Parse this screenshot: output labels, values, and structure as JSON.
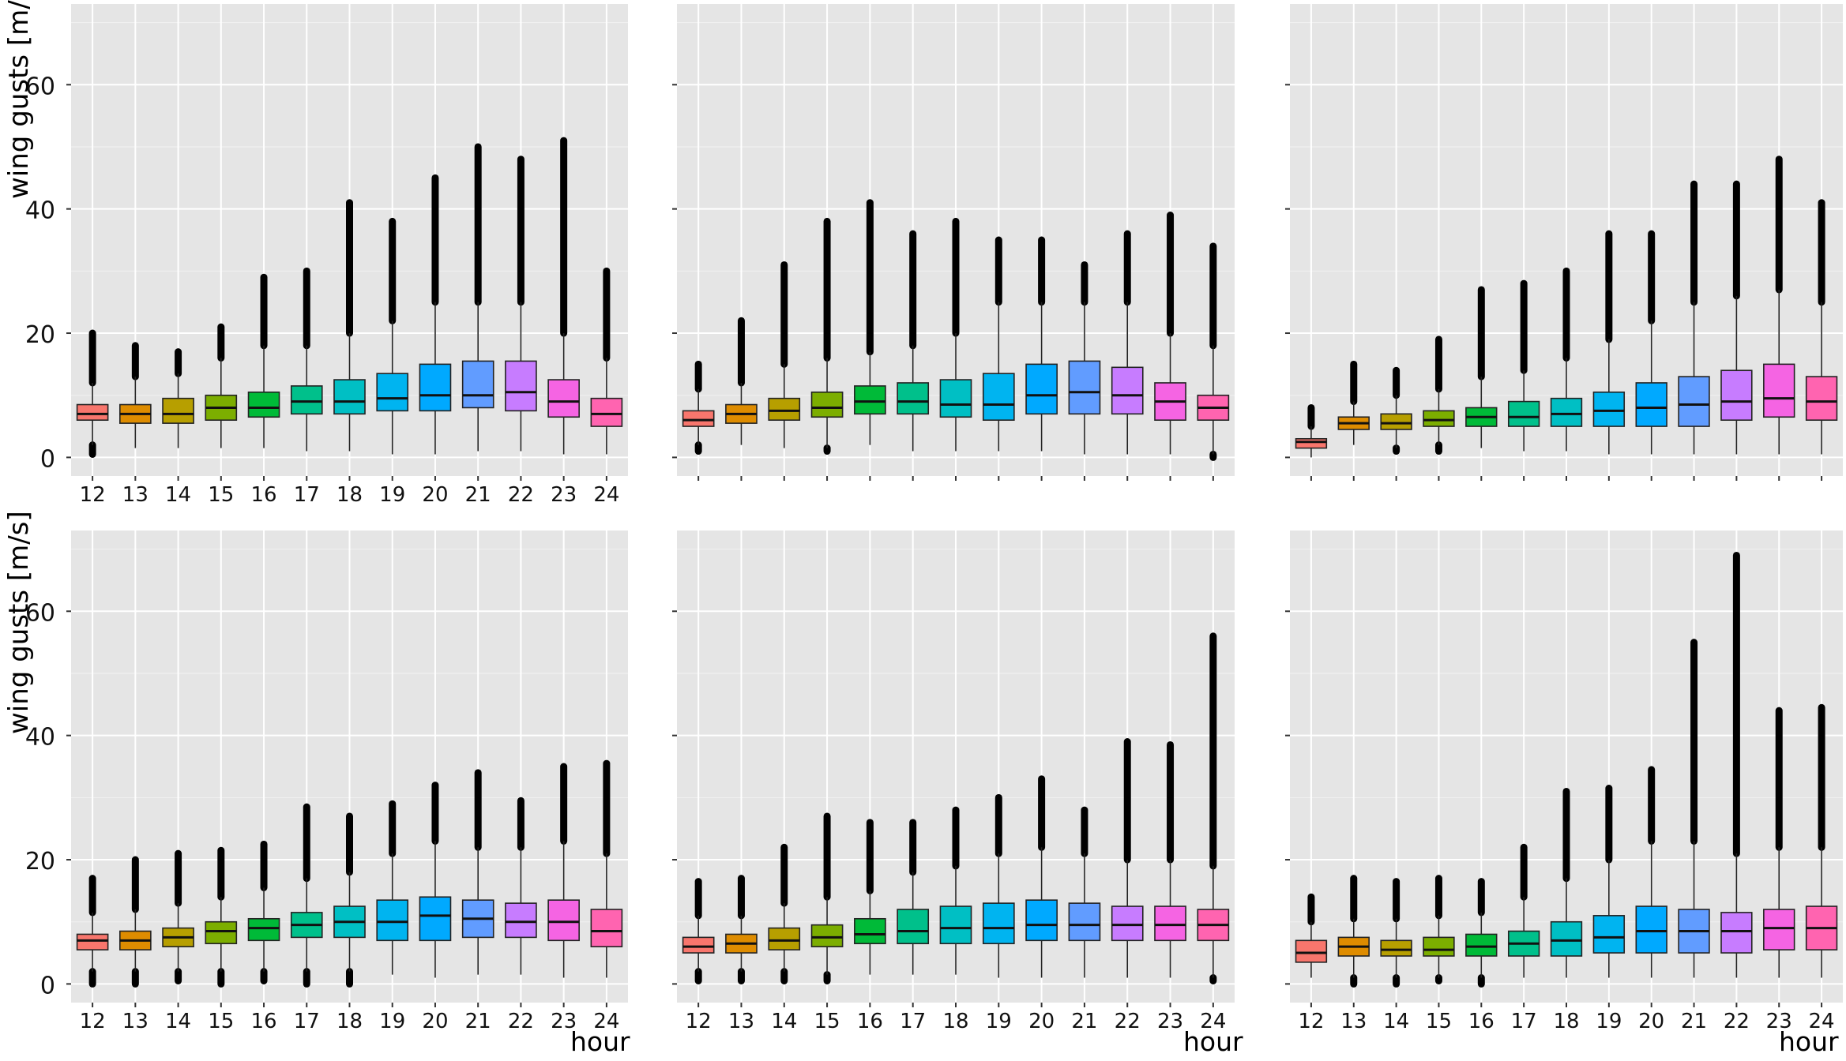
{
  "figure": {
    "y_label": "wing gusts [m/s]",
    "x_label": "hour"
  },
  "colors": [
    "#F8766D",
    "#DE8C00",
    "#B79F00",
    "#7CAE00",
    "#00BA38",
    "#00C08B",
    "#00BFC4",
    "#00B4F0",
    "#00A9FF",
    "#619CFF",
    "#C77CFF",
    "#F564E3",
    "#FF64B0"
  ],
  "chart_data": [
    {
      "type": "boxplot",
      "panel": "top-left",
      "categories": [
        "12",
        "13",
        "14",
        "15",
        "16",
        "17",
        "18",
        "19",
        "20",
        "21",
        "22",
        "23",
        "24"
      ],
      "ylim": [
        -3,
        73
      ],
      "yticks": [
        0,
        20,
        40,
        60
      ],
      "show_ytick_labels": true,
      "show_xtick_labels": true,
      "ylabel": "wing gusts [m/s]",
      "xlabel": "",
      "boxes": [
        {
          "q1": 6,
          "median": 7,
          "q3": 8.5,
          "whisker_low": 2,
          "whisker_high": 12,
          "outlier_high": 20,
          "outlier_low": 0.5
        },
        {
          "q1": 5.5,
          "median": 7,
          "q3": 8.5,
          "whisker_low": 1.5,
          "whisker_high": 13,
          "outlier_high": 18
        },
        {
          "q1": 5.5,
          "median": 7,
          "q3": 9.5,
          "whisker_low": 1.5,
          "whisker_high": 13.5,
          "outlier_high": 17
        },
        {
          "q1": 6,
          "median": 8,
          "q3": 10,
          "whisker_low": 1.5,
          "whisker_high": 16,
          "outlier_high": 21
        },
        {
          "q1": 6.5,
          "median": 8,
          "q3": 10.5,
          "whisker_low": 1.5,
          "whisker_high": 18,
          "outlier_high": 29
        },
        {
          "q1": 7,
          "median": 9,
          "q3": 11.5,
          "whisker_low": 1,
          "whisker_high": 18,
          "outlier_high": 30
        },
        {
          "q1": 7,
          "median": 9,
          "q3": 12.5,
          "whisker_low": 1,
          "whisker_high": 20,
          "outlier_high": 41
        },
        {
          "q1": 7.5,
          "median": 9.5,
          "q3": 13.5,
          "whisker_low": 0.5,
          "whisker_high": 22,
          "outlier_high": 38
        },
        {
          "q1": 7.5,
          "median": 10,
          "q3": 15,
          "whisker_low": 0.5,
          "whisker_high": 25,
          "outlier_high": 45
        },
        {
          "q1": 8,
          "median": 10,
          "q3": 15.5,
          "whisker_low": 1,
          "whisker_high": 25,
          "outlier_high": 50
        },
        {
          "q1": 7.5,
          "median": 10.5,
          "q3": 15.5,
          "whisker_low": 1,
          "whisker_high": 25,
          "outlier_high": 48
        },
        {
          "q1": 6.5,
          "median": 9,
          "q3": 12.5,
          "whisker_low": 0.5,
          "whisker_high": 20,
          "outlier_high": 51
        },
        {
          "q1": 5,
          "median": 7,
          "q3": 9.5,
          "whisker_low": 0.5,
          "whisker_high": 16,
          "outlier_high": 30
        }
      ]
    },
    {
      "type": "boxplot",
      "panel": "top-middle",
      "categories": [
        "12",
        "13",
        "14",
        "15",
        "16",
        "17",
        "18",
        "19",
        "20",
        "21",
        "22",
        "23",
        "24"
      ],
      "ylim": [
        -3,
        73
      ],
      "yticks": [
        0,
        20,
        40,
        60
      ],
      "show_ytick_labels": false,
      "show_xtick_labels": false,
      "boxes": [
        {
          "q1": 5,
          "median": 6,
          "q3": 7.5,
          "whisker_low": 2,
          "whisker_high": 11,
          "outlier_high": 15,
          "outlier_low": 1
        },
        {
          "q1": 5.5,
          "median": 7,
          "q3": 8.5,
          "whisker_low": 2,
          "whisker_high": 12,
          "outlier_high": 22
        },
        {
          "q1": 6,
          "median": 7.5,
          "q3": 9.5,
          "whisker_low": 1.5,
          "whisker_high": 15,
          "outlier_high": 31
        },
        {
          "q1": 6.5,
          "median": 8,
          "q3": 10.5,
          "whisker_low": 1.5,
          "whisker_high": 16,
          "outlier_high": 38,
          "outlier_low": 1
        },
        {
          "q1": 7,
          "median": 9,
          "q3": 11.5,
          "whisker_low": 2,
          "whisker_high": 17,
          "outlier_high": 41
        },
        {
          "q1": 7,
          "median": 9,
          "q3": 12,
          "whisker_low": 1,
          "whisker_high": 18,
          "outlier_high": 36
        },
        {
          "q1": 6.5,
          "median": 8.5,
          "q3": 12.5,
          "whisker_low": 1,
          "whisker_high": 20,
          "outlier_high": 38
        },
        {
          "q1": 6,
          "median": 8.5,
          "q3": 13.5,
          "whisker_low": 1,
          "whisker_high": 25,
          "outlier_high": 35
        },
        {
          "q1": 7,
          "median": 10,
          "q3": 15,
          "whisker_low": 1,
          "whisker_high": 25,
          "outlier_high": 35
        },
        {
          "q1": 7,
          "median": 10.5,
          "q3": 15.5,
          "whisker_low": 0.5,
          "whisker_high": 25,
          "outlier_high": 31
        },
        {
          "q1": 7,
          "median": 10,
          "q3": 14.5,
          "whisker_low": 0.5,
          "whisker_high": 25,
          "outlier_high": 36
        },
        {
          "q1": 6,
          "median": 9,
          "q3": 12,
          "whisker_low": 0.5,
          "whisker_high": 20,
          "outlier_high": 39
        },
        {
          "q1": 6,
          "median": 8,
          "q3": 10,
          "whisker_low": 0.5,
          "whisker_high": 18,
          "outlier_high": 34,
          "outlier_low": 0
        }
      ]
    },
    {
      "type": "boxplot",
      "panel": "top-right",
      "categories": [
        "12",
        "13",
        "14",
        "15",
        "16",
        "17",
        "18",
        "19",
        "20",
        "21",
        "22",
        "23",
        "24"
      ],
      "ylim": [
        -3,
        73
      ],
      "yticks": [
        0,
        20,
        40,
        60
      ],
      "show_ytick_labels": false,
      "show_xtick_labels": false,
      "boxes": [
        {
          "q1": 1.5,
          "median": 2.5,
          "q3": 3,
          "whisker_low": 0,
          "whisker_high": 5,
          "outlier_high": 8
        },
        {
          "q1": 4.5,
          "median": 5.5,
          "q3": 6.5,
          "whisker_low": 2,
          "whisker_high": 9,
          "outlier_high": 15
        },
        {
          "q1": 4.5,
          "median": 5.5,
          "q3": 7,
          "whisker_low": 1.5,
          "whisker_high": 10,
          "outlier_high": 14,
          "outlier_low": 1
        },
        {
          "q1": 5,
          "median": 6,
          "q3": 7.5,
          "whisker_low": 2,
          "whisker_high": 11,
          "outlier_high": 19,
          "outlier_low": 1
        },
        {
          "q1": 5,
          "median": 6.5,
          "q3": 8,
          "whisker_low": 1.5,
          "whisker_high": 13,
          "outlier_high": 27
        },
        {
          "q1": 5,
          "median": 6.5,
          "q3": 9,
          "whisker_low": 1,
          "whisker_high": 14,
          "outlier_high": 28
        },
        {
          "q1": 5,
          "median": 7,
          "q3": 9.5,
          "whisker_low": 1,
          "whisker_high": 16,
          "outlier_high": 30
        },
        {
          "q1": 5,
          "median": 7.5,
          "q3": 10.5,
          "whisker_low": 0.5,
          "whisker_high": 19,
          "outlier_high": 36
        },
        {
          "q1": 5,
          "median": 8,
          "q3": 12,
          "whisker_low": 0.5,
          "whisker_high": 22,
          "outlier_high": 36
        },
        {
          "q1": 5,
          "median": 8.5,
          "q3": 13,
          "whisker_low": 0.5,
          "whisker_high": 25,
          "outlier_high": 44
        },
        {
          "q1": 6,
          "median": 9,
          "q3": 14,
          "whisker_low": 0.5,
          "whisker_high": 26,
          "outlier_high": 44
        },
        {
          "q1": 6.5,
          "median": 9.5,
          "q3": 15,
          "whisker_low": 0.5,
          "whisker_high": 27,
          "outlier_high": 48
        },
        {
          "q1": 6,
          "median": 9,
          "q3": 13,
          "whisker_low": 0.5,
          "whisker_high": 25,
          "outlier_high": 41
        }
      ]
    },
    {
      "type": "boxplot",
      "panel": "bottom-left",
      "categories": [
        "12",
        "13",
        "14",
        "15",
        "16",
        "17",
        "18",
        "19",
        "20",
        "21",
        "22",
        "23",
        "24"
      ],
      "ylim": [
        -3,
        73
      ],
      "yticks": [
        0,
        20,
        40,
        60
      ],
      "show_ytick_labels": true,
      "show_xtick_labels": true,
      "ylabel": "wing gusts [m/s]",
      "xlabel": "hour",
      "boxes": [
        {
          "q1": 5.5,
          "median": 7,
          "q3": 8,
          "whisker_low": 2,
          "whisker_high": 11.5,
          "outlier_high": 17,
          "outlier_low": 0
        },
        {
          "q1": 5.5,
          "median": 7,
          "q3": 8.5,
          "whisker_low": 2,
          "whisker_high": 12,
          "outlier_high": 20,
          "outlier_low": 0
        },
        {
          "q1": 6,
          "median": 7.5,
          "q3": 9,
          "whisker_low": 2,
          "whisker_high": 13,
          "outlier_high": 21,
          "outlier_low": 0.5
        },
        {
          "q1": 6.5,
          "median": 8.5,
          "q3": 10,
          "whisker_low": 2,
          "whisker_high": 14,
          "outlier_high": 21.5,
          "outlier_low": 0
        },
        {
          "q1": 7,
          "median": 9,
          "q3": 10.5,
          "whisker_low": 2,
          "whisker_high": 15.5,
          "outlier_high": 22.5,
          "outlier_low": 0.5
        },
        {
          "q1": 7.5,
          "median": 9.5,
          "q3": 11.5,
          "whisker_low": 2,
          "whisker_high": 17,
          "outlier_high": 28.5,
          "outlier_low": 0
        },
        {
          "q1": 7.5,
          "median": 10,
          "q3": 12.5,
          "whisker_low": 2,
          "whisker_high": 18,
          "outlier_high": 27,
          "outlier_low": 0
        },
        {
          "q1": 7,
          "median": 10,
          "q3": 13.5,
          "whisker_low": 1.5,
          "whisker_high": 21,
          "outlier_high": 29
        },
        {
          "q1": 7,
          "median": 11,
          "q3": 14,
          "whisker_low": 1,
          "whisker_high": 23,
          "outlier_high": 32
        },
        {
          "q1": 7.5,
          "median": 10.5,
          "q3": 13.5,
          "whisker_low": 1.5,
          "whisker_high": 22,
          "outlier_high": 34
        },
        {
          "q1": 7.5,
          "median": 10,
          "q3": 13,
          "whisker_low": 1.5,
          "whisker_high": 22,
          "outlier_high": 29.5
        },
        {
          "q1": 7,
          "median": 10,
          "q3": 13.5,
          "whisker_low": 1,
          "whisker_high": 23,
          "outlier_high": 35
        },
        {
          "q1": 6,
          "median": 8.5,
          "q3": 12,
          "whisker_low": 1,
          "whisker_high": 21,
          "outlier_high": 35.5
        }
      ]
    },
    {
      "type": "boxplot",
      "panel": "bottom-middle",
      "categories": [
        "12",
        "13",
        "14",
        "15",
        "16",
        "17",
        "18",
        "19",
        "20",
        "21",
        "22",
        "23",
        "24"
      ],
      "ylim": [
        -3,
        73
      ],
      "yticks": [
        0,
        20,
        40,
        60
      ],
      "show_ytick_labels": false,
      "show_xtick_labels": true,
      "xlabel": "hour",
      "boxes": [
        {
          "q1": 5,
          "median": 6,
          "q3": 7.5,
          "whisker_low": 2,
          "whisker_high": 11,
          "outlier_high": 16.5,
          "outlier_low": 0.5
        },
        {
          "q1": 5,
          "median": 6.5,
          "q3": 8,
          "whisker_low": 2,
          "whisker_high": 11,
          "outlier_high": 17,
          "outlier_low": 0.5
        },
        {
          "q1": 5.5,
          "median": 7,
          "q3": 9,
          "whisker_low": 2,
          "whisker_high": 13,
          "outlier_high": 22,
          "outlier_low": 0.5
        },
        {
          "q1": 6,
          "median": 7.5,
          "q3": 9.5,
          "whisker_low": 1.5,
          "whisker_high": 14,
          "outlier_high": 27,
          "outlier_low": 0.5
        },
        {
          "q1": 6.5,
          "median": 8,
          "q3": 10.5,
          "whisker_low": 1.5,
          "whisker_high": 15,
          "outlier_high": 26
        },
        {
          "q1": 6.5,
          "median": 8.5,
          "q3": 12,
          "whisker_low": 1.5,
          "whisker_high": 18,
          "outlier_high": 26
        },
        {
          "q1": 6.5,
          "median": 9,
          "q3": 12.5,
          "whisker_low": 1.5,
          "whisker_high": 19,
          "outlier_high": 28
        },
        {
          "q1": 6.5,
          "median": 9,
          "q3": 13,
          "whisker_low": 1,
          "whisker_high": 21,
          "outlier_high": 30
        },
        {
          "q1": 7,
          "median": 9.5,
          "q3": 13.5,
          "whisker_low": 1,
          "whisker_high": 22,
          "outlier_high": 33
        },
        {
          "q1": 7,
          "median": 9.5,
          "q3": 13,
          "whisker_low": 1,
          "whisker_high": 21,
          "outlier_high": 28
        },
        {
          "q1": 7,
          "median": 9.5,
          "q3": 12.5,
          "whisker_low": 1,
          "whisker_high": 20,
          "outlier_high": 39
        },
        {
          "q1": 7,
          "median": 9.5,
          "q3": 12.5,
          "whisker_low": 1,
          "whisker_high": 20,
          "outlier_high": 38.5
        },
        {
          "q1": 7,
          "median": 9.5,
          "q3": 12,
          "whisker_low": 1,
          "whisker_high": 19,
          "outlier_high": 56,
          "outlier_low": 0.5
        }
      ]
    },
    {
      "type": "boxplot",
      "panel": "bottom-right",
      "categories": [
        "12",
        "13",
        "14",
        "15",
        "16",
        "17",
        "18",
        "19",
        "20",
        "21",
        "22",
        "23",
        "24"
      ],
      "ylim": [
        -3,
        73
      ],
      "yticks": [
        0,
        20,
        40,
        60
      ],
      "show_ytick_labels": false,
      "show_xtick_labels": true,
      "xlabel": "hour",
      "boxes": [
        {
          "q1": 3.5,
          "median": 5,
          "q3": 7,
          "whisker_low": 1,
          "whisker_high": 10,
          "outlier_high": 14
        },
        {
          "q1": 4.5,
          "median": 6,
          "q3": 7.5,
          "whisker_low": 1,
          "whisker_high": 10.5,
          "outlier_high": 17,
          "outlier_low": 0
        },
        {
          "q1": 4.5,
          "median": 5.5,
          "q3": 7,
          "whisker_low": 1,
          "whisker_high": 10.5,
          "outlier_high": 16.5,
          "outlier_low": 0
        },
        {
          "q1": 4.5,
          "median": 5.5,
          "q3": 7.5,
          "whisker_low": 1,
          "whisker_high": 11,
          "outlier_high": 17,
          "outlier_low": 0.5
        },
        {
          "q1": 4.5,
          "median": 6,
          "q3": 8,
          "whisker_low": 1,
          "whisker_high": 11.5,
          "outlier_high": 16.5,
          "outlier_low": 0
        },
        {
          "q1": 4.5,
          "median": 6.5,
          "q3": 8.5,
          "whisker_low": 1,
          "whisker_high": 14,
          "outlier_high": 22
        },
        {
          "q1": 4.5,
          "median": 7,
          "q3": 10,
          "whisker_low": 1,
          "whisker_high": 17,
          "outlier_high": 31
        },
        {
          "q1": 5,
          "median": 7.5,
          "q3": 11,
          "whisker_low": 1,
          "whisker_high": 20,
          "outlier_high": 31.5
        },
        {
          "q1": 5,
          "median": 8.5,
          "q3": 12.5,
          "whisker_low": 1,
          "whisker_high": 23,
          "outlier_high": 34.5
        },
        {
          "q1": 5,
          "median": 8.5,
          "q3": 12,
          "whisker_low": 1,
          "whisker_high": 23,
          "outlier_high": 55
        },
        {
          "q1": 5,
          "median": 8.5,
          "q3": 11.5,
          "whisker_low": 1,
          "whisker_high": 21,
          "outlier_high": 69
        },
        {
          "q1": 5.5,
          "median": 9,
          "q3": 12,
          "whisker_low": 1,
          "whisker_high": 22,
          "outlier_high": 44
        },
        {
          "q1": 5.5,
          "median": 9,
          "q3": 12.5,
          "whisker_low": 1,
          "whisker_high": 22,
          "outlier_high": 44.5
        }
      ]
    }
  ]
}
